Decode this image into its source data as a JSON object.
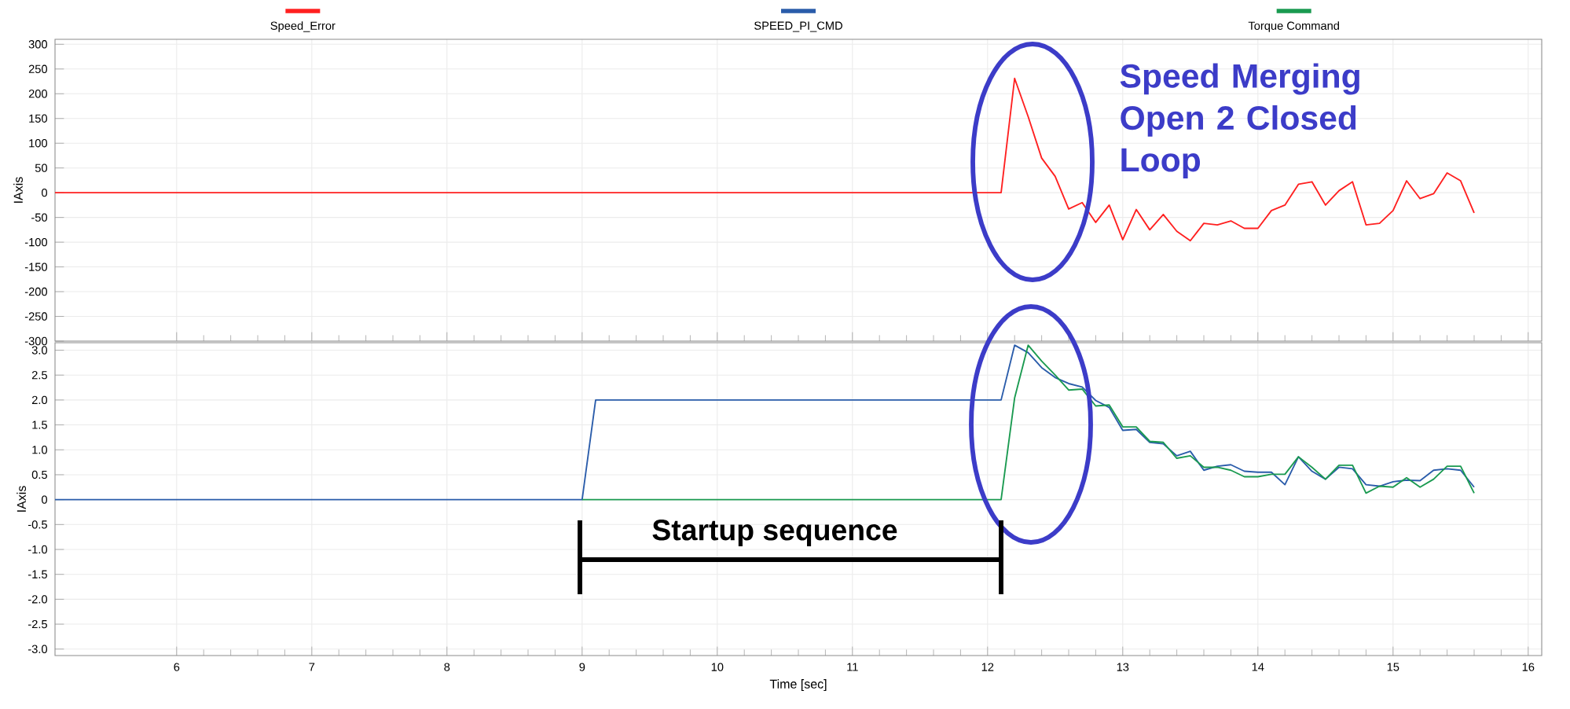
{
  "chart_data": [
    {
      "type": "line",
      "ylabel": "IAxis",
      "legend": "top",
      "grid": true,
      "tick_labels": "y",
      "xlim": [
        5.1,
        16.1
      ],
      "xticks": [
        6,
        7,
        8,
        9,
        10,
        11,
        12,
        13,
        14,
        15,
        16
      ],
      "ylim": [
        -300,
        310
      ],
      "yticks": [
        -300,
        -250,
        -200,
        -150,
        -100,
        -50,
        0,
        50,
        100,
        150,
        200,
        250,
        300
      ],
      "series": [
        {
          "name": "Speed_Error",
          "color": "#ff2020",
          "x": [
            5.1,
            12.1,
            12.2,
            12.3,
            12.4,
            12.5,
            12.6,
            12.7,
            12.8,
            12.9,
            13.0,
            13.1,
            13.2,
            13.3,
            13.4,
            13.5,
            13.6,
            13.7,
            13.8,
            13.9,
            14.0,
            14.1,
            14.2,
            14.3,
            14.4,
            14.5,
            14.6,
            14.7,
            14.8,
            14.9,
            15.0,
            15.1,
            15.2,
            15.3,
            15.4,
            15.5,
            15.6
          ],
          "values": [
            0,
            0,
            231,
            154,
            70,
            33,
            -33,
            -20,
            -60,
            -25,
            -95,
            -34,
            -75,
            -44,
            -78,
            -97,
            -62,
            -65,
            -57,
            -72,
            -72,
            -36,
            -25,
            17,
            22,
            -25,
            4,
            22,
            -65,
            -62,
            -36,
            24,
            -12,
            -2,
            40,
            24,
            -41
          ]
        }
      ],
      "annotations": [
        "Speed Merging Open 2 Closed Loop"
      ]
    },
    {
      "type": "line",
      "xlabel": "Time [sec]",
      "ylabel": "IAxis",
      "legend": "top",
      "grid": true,
      "xlim": [
        5.1,
        16.1
      ],
      "xticks": [
        6,
        7,
        8,
        9,
        10,
        11,
        12,
        13,
        14,
        15,
        16
      ],
      "ylim": [
        -3.13,
        3.15
      ],
      "yticks": [
        {
          "value": -3,
          "label": "-3.0"
        },
        -2.5,
        {
          "value": -2,
          "label": "-2.0"
        },
        -1.5,
        {
          "value": -1,
          "label": "-1.0"
        },
        -0.5,
        0,
        0.5,
        {
          "value": 1,
          "label": "1.0"
        },
        1.5,
        {
          "value": 2,
          "label": "2.0"
        },
        2.5,
        {
          "value": 3,
          "label": "3.0"
        }
      ],
      "series": [
        {
          "name": "SPEED_PI_CMD",
          "color": "#2a5caa",
          "x": [
            5.1,
            9.0,
            9.1,
            12.1,
            12.2,
            12.3,
            12.4,
            12.5,
            12.6,
            12.7,
            12.8,
            12.9,
            13.0,
            13.1,
            13.2,
            13.3,
            13.4,
            13.5,
            13.6,
            13.7,
            13.8,
            13.9,
            14.0,
            14.1,
            14.2,
            14.3,
            14.4,
            14.5,
            14.6,
            14.7,
            14.8,
            14.9,
            15.0,
            15.1,
            15.2,
            15.3,
            15.4,
            15.5,
            15.6
          ],
          "values": [
            0,
            0,
            2,
            2,
            3.1,
            2.95,
            2.65,
            2.45,
            2.33,
            2.26,
            1.99,
            1.85,
            1.39,
            1.41,
            1.15,
            1.12,
            0.88,
            0.97,
            0.59,
            0.67,
            0.7,
            0.57,
            0.55,
            0.55,
            0.3,
            0.86,
            0.57,
            0.41,
            0.65,
            0.62,
            0.3,
            0.27,
            0.36,
            0.39,
            0.38,
            0.59,
            0.62,
            0.59,
            0.25
          ]
        },
        {
          "name": "Torque Command",
          "color": "#1a9a50",
          "x": [
            9.0,
            12.1,
            12.2,
            12.3,
            12.4,
            12.5,
            12.6,
            12.7,
            12.8,
            12.9,
            13.0,
            13.1,
            13.2,
            13.3,
            13.4,
            13.5,
            13.6,
            13.7,
            13.8,
            13.9,
            14.0,
            14.1,
            14.2,
            14.3,
            14.4,
            14.5,
            14.6,
            14.7,
            14.8,
            14.9,
            15.0,
            15.1,
            15.2,
            15.3,
            15.4,
            15.5,
            15.6
          ],
          "values": [
            0,
            0,
            2.04,
            3.1,
            2.78,
            2.5,
            2.2,
            2.22,
            1.88,
            1.9,
            1.46,
            1.46,
            1.17,
            1.15,
            0.83,
            0.88,
            0.65,
            0.65,
            0.59,
            0.46,
            0.46,
            0.51,
            0.51,
            0.86,
            0.65,
            0.41,
            0.69,
            0.69,
            0.13,
            0.27,
            0.25,
            0.44,
            0.25,
            0.41,
            0.67,
            0.67,
            0.13
          ]
        }
      ],
      "annotations": [
        "Startup sequence"
      ]
    }
  ]
}
